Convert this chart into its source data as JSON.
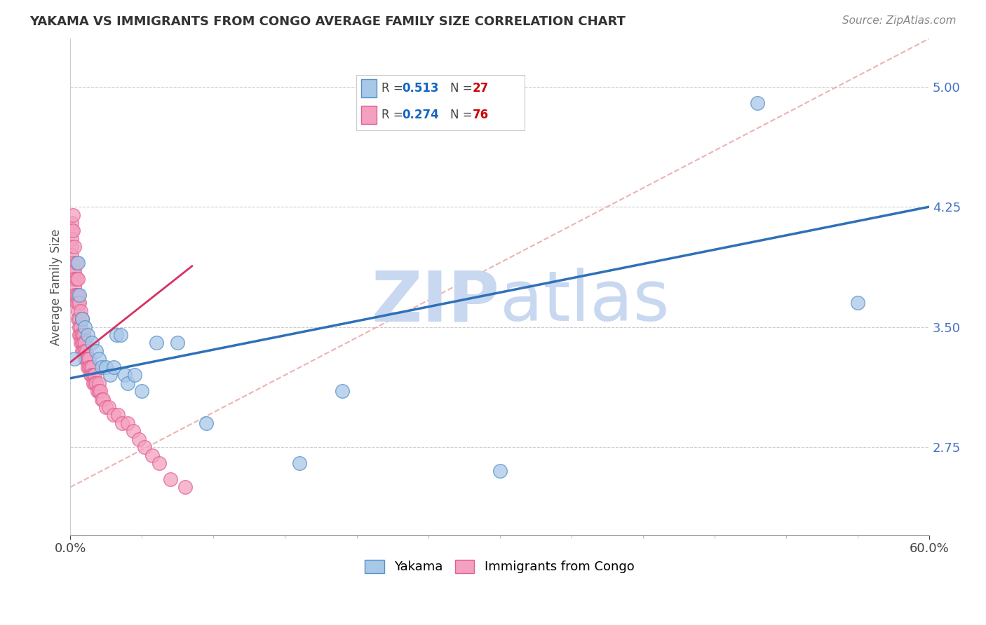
{
  "title": "YAKAMA VS IMMIGRANTS FROM CONGO AVERAGE FAMILY SIZE CORRELATION CHART",
  "source": "Source: ZipAtlas.com",
  "ylabel": "Average Family Size",
  "xlim": [
    0.0,
    0.6
  ],
  "ylim": [
    2.2,
    5.3
  ],
  "yticks": [
    2.75,
    3.5,
    4.25,
    5.0
  ],
  "xtick_positions": [
    0.0,
    0.6
  ],
  "xtick_labels": [
    "0.0%",
    "60.0%"
  ],
  "legend_labels": [
    "Yakama",
    "Immigrants from Congo"
  ],
  "yakama_R": "0.513",
  "yakama_N": "27",
  "congo_R": "0.274",
  "congo_N": "76",
  "blue_scatter_color": "#a8c8e8",
  "blue_scatter_edge": "#5590c8",
  "pink_scatter_color": "#f4a0c0",
  "pink_scatter_edge": "#e06090",
  "blue_line_color": "#3070b8",
  "pink_line_color": "#d83060",
  "title_color": "#333333",
  "axis_label_color": "#555555",
  "tick_color": "#4472C4",
  "grid_color": "#c8c8c8",
  "watermark_zip_color": "#c8d8f0",
  "watermark_atlas_color": "#c8d8f0",
  "ref_line_color": "#e8a0a0",
  "legend_r_color": "#1565C0",
  "legend_n_color": "#cc0000",
  "yakama_x": [
    0.003,
    0.005,
    0.006,
    0.008,
    0.01,
    0.012,
    0.015,
    0.018,
    0.02,
    0.022,
    0.025,
    0.028,
    0.03,
    0.032,
    0.035,
    0.038,
    0.04,
    0.045,
    0.05,
    0.06,
    0.075,
    0.095,
    0.16,
    0.19,
    0.3,
    0.48,
    0.55
  ],
  "yakama_y": [
    3.3,
    3.9,
    3.7,
    3.55,
    3.5,
    3.45,
    3.4,
    3.35,
    3.3,
    3.25,
    3.25,
    3.2,
    3.25,
    3.45,
    3.45,
    3.2,
    3.15,
    3.2,
    3.1,
    3.4,
    3.4,
    2.9,
    2.65,
    3.1,
    2.6,
    4.9,
    3.65
  ],
  "congo_x": [
    0.001,
    0.001,
    0.001,
    0.001,
    0.001,
    0.002,
    0.002,
    0.002,
    0.002,
    0.002,
    0.003,
    0.003,
    0.003,
    0.003,
    0.003,
    0.004,
    0.004,
    0.004,
    0.004,
    0.005,
    0.005,
    0.005,
    0.005,
    0.005,
    0.006,
    0.006,
    0.006,
    0.006,
    0.007,
    0.007,
    0.007,
    0.007,
    0.008,
    0.008,
    0.008,
    0.008,
    0.009,
    0.009,
    0.009,
    0.01,
    0.01,
    0.01,
    0.011,
    0.011,
    0.012,
    0.012,
    0.013,
    0.013,
    0.014,
    0.014,
    0.015,
    0.015,
    0.016,
    0.016,
    0.017,
    0.017,
    0.018,
    0.019,
    0.02,
    0.02,
    0.021,
    0.022,
    0.023,
    0.025,
    0.027,
    0.03,
    0.033,
    0.036,
    0.04,
    0.044,
    0.048,
    0.052,
    0.057,
    0.062,
    0.07,
    0.08
  ],
  "congo_y": [
    4.15,
    4.1,
    4.05,
    4.0,
    3.95,
    4.2,
    4.1,
    3.9,
    3.85,
    3.8,
    4.0,
    3.85,
    3.8,
    3.75,
    3.7,
    3.9,
    3.8,
    3.7,
    3.65,
    3.8,
    3.7,
    3.65,
    3.6,
    3.55,
    3.65,
    3.55,
    3.5,
    3.45,
    3.6,
    3.5,
    3.45,
    3.4,
    3.55,
    3.45,
    3.4,
    3.35,
    3.45,
    3.4,
    3.35,
    3.4,
    3.35,
    3.3,
    3.35,
    3.3,
    3.3,
    3.25,
    3.3,
    3.25,
    3.25,
    3.2,
    3.25,
    3.2,
    3.2,
    3.15,
    3.2,
    3.15,
    3.15,
    3.1,
    3.15,
    3.1,
    3.1,
    3.05,
    3.05,
    3.0,
    3.0,
    2.95,
    2.95,
    2.9,
    2.9,
    2.85,
    2.8,
    2.75,
    2.7,
    2.65,
    2.55,
    2.5
  ]
}
